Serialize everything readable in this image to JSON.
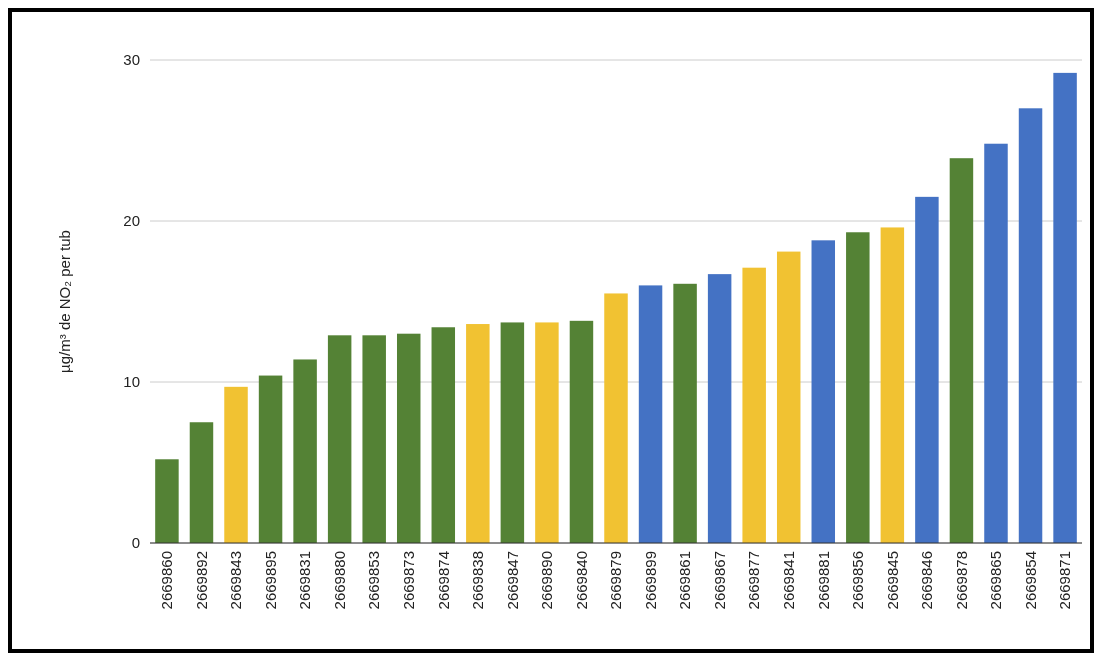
{
  "chart_data": {
    "type": "bar",
    "ylabel": "µg/m³ de NO₂ per tub",
    "categories": [
      "2669860",
      "2669892",
      "2669843",
      "2669895",
      "2669831",
      "2669880",
      "2669853",
      "2669873",
      "2669874",
      "2669838",
      "2669847",
      "2669890",
      "2669840",
      "2669879",
      "2669899",
      "2669861",
      "2669867",
      "2669877",
      "2669841",
      "2669881",
      "2669856",
      "2669845",
      "2669846",
      "2669878",
      "2669865",
      "2669854",
      "2669871"
    ],
    "values": [
      5.2,
      7.5,
      9.7,
      10.4,
      11.4,
      12.9,
      12.9,
      13.0,
      13.4,
      13.6,
      13.7,
      13.7,
      13.8,
      15.5,
      16.0,
      16.1,
      16.7,
      17.1,
      18.1,
      18.8,
      19.3,
      19.6,
      21.5,
      23.9,
      24.8,
      27.0,
      29.2
    ],
    "colors": [
      "#548235",
      "#548235",
      "#f1c232",
      "#548235",
      "#548235",
      "#548235",
      "#548235",
      "#548235",
      "#548235",
      "#f1c232",
      "#548235",
      "#f1c232",
      "#548235",
      "#f1c232",
      "#4472c4",
      "#548235",
      "#4472c4",
      "#f1c232",
      "#f1c232",
      "#4472c4",
      "#548235",
      "#f1c232",
      "#4472c4",
      "#548235",
      "#4472c4",
      "#4472c4",
      "#4472c4"
    ],
    "ylim": [
      0,
      30
    ],
    "yticks": [
      0,
      10,
      20,
      30
    ],
    "grid": true
  }
}
